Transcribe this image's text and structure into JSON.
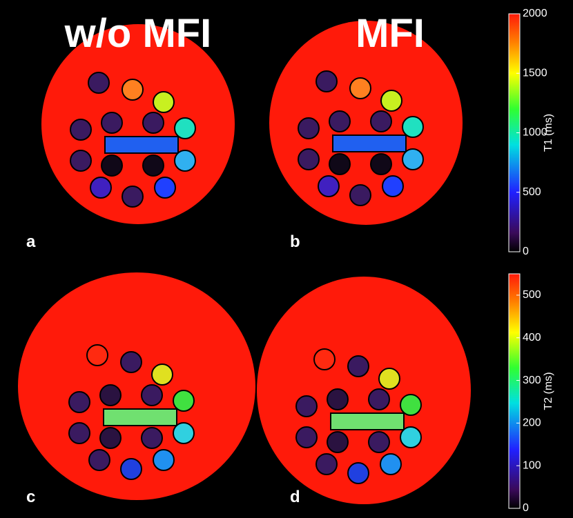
{
  "columns": [
    "w/o MFI",
    "MFI"
  ],
  "panels": [
    "a",
    "b",
    "c",
    "d"
  ],
  "colorbars": [
    {
      "label": "T1 (ms)",
      "lim": [
        0,
        2000
      ],
      "ticks": [
        0,
        500,
        1000,
        1500,
        2000
      ]
    },
    {
      "label": "T2 (ms)",
      "lim": [
        0,
        550
      ],
      "ticks": [
        0,
        100,
        200,
        300,
        400,
        500
      ]
    }
  ]
}
